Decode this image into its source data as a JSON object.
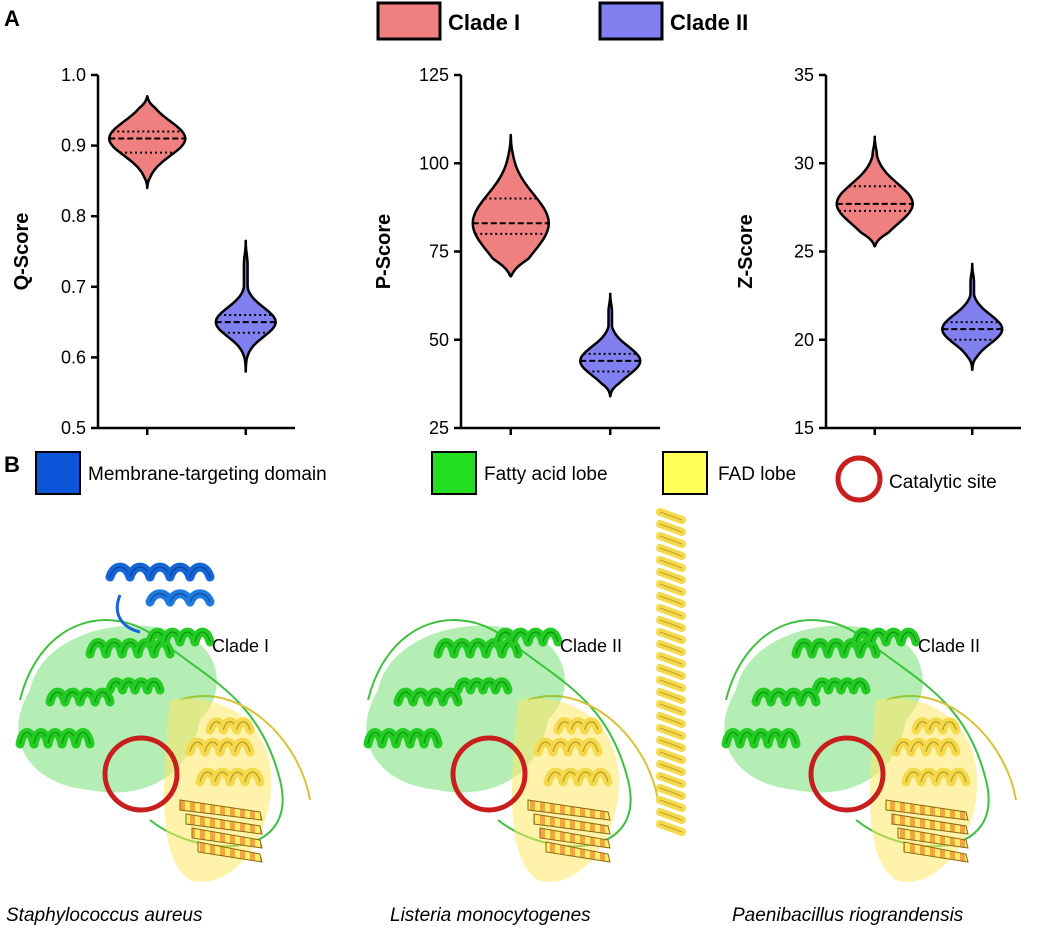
{
  "panel_a": {
    "label": "A",
    "legend": [
      {
        "label": "Clade I",
        "color": "#f08080"
      },
      {
        "label": "Clade II",
        "color": "#8080f0"
      }
    ]
  },
  "panel_b": {
    "label": "B",
    "legend": [
      {
        "label": "Membrane-targeting domain",
        "color": "#0a55d8",
        "shape": "square"
      },
      {
        "label": "Fatty acid lobe",
        "color": "#22dd22",
        "shape": "square"
      },
      {
        "label": "FAD lobe",
        "color": "#ffff55",
        "shape": "square"
      },
      {
        "label": "Catalytic site",
        "color": "#c81e1e",
        "shape": "ring"
      }
    ],
    "structures": [
      {
        "clade": "Clade I",
        "species": "Staphylococcus aureus",
        "has_membrane_domain": true,
        "has_long_helix": false
      },
      {
        "clade": "Clade II",
        "species": "Listeria monocytogenes",
        "has_membrane_domain": false,
        "has_long_helix": true
      },
      {
        "clade": "Clade II",
        "species": "Paenibacillus riograndensis",
        "has_membrane_domain": false,
        "has_long_helix": false
      }
    ]
  },
  "chart_data": [
    {
      "type": "violin",
      "ylabel": "Q-Score",
      "ylim": [
        0.5,
        1.0
      ],
      "yticks": [
        "0.5",
        "0.6",
        "0.7",
        "0.8",
        "0.9",
        "1.0"
      ],
      "series": [
        {
          "name": "Clade I",
          "median": 0.91,
          "q1": 0.89,
          "q3": 0.92,
          "min": 0.84,
          "max": 0.97
        },
        {
          "name": "Clade II",
          "median": 0.65,
          "q1": 0.635,
          "q3": 0.66,
          "min": 0.58,
          "max": 0.765
        }
      ]
    },
    {
      "type": "violin",
      "ylabel": "P-Score",
      "ylim": [
        25,
        125
      ],
      "yticks": [
        "25",
        "50",
        "75",
        "100",
        "125"
      ],
      "series": [
        {
          "name": "Clade I",
          "median": 83,
          "q1": 80,
          "q3": 90,
          "min": 68,
          "max": 108
        },
        {
          "name": "Clade II",
          "median": 44,
          "q1": 41,
          "q3": 46,
          "min": 34,
          "max": 63
        }
      ]
    },
    {
      "type": "violin",
      "ylabel": "Z-Score",
      "ylim": [
        15,
        35
      ],
      "yticks": [
        "15",
        "20",
        "25",
        "30",
        "35"
      ],
      "series": [
        {
          "name": "Clade I",
          "median": 27.7,
          "q1": 27.3,
          "q3": 28.7,
          "min": 25.3,
          "max": 31.5
        },
        {
          "name": "Clade II",
          "median": 20.6,
          "q1": 20.0,
          "q3": 21.0,
          "min": 18.3,
          "max": 24.3
        }
      ]
    }
  ]
}
